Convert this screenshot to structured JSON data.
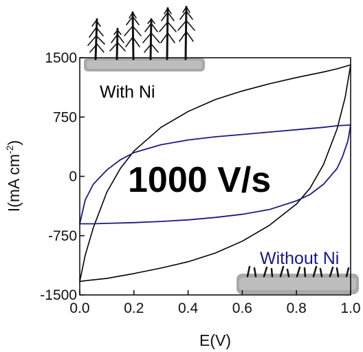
{
  "chart_data": {
    "type": "line",
    "xlabel": "E(V)",
    "ylabel": {
      "main": "I(mA cm",
      "superscript": "-2",
      "close": ")"
    },
    "xlim": [
      0.0,
      1.0
    ],
    "ylim": [
      -1500,
      1500
    ],
    "xticks": [
      "0.0",
      "0.2",
      "0.4",
      "0.6",
      "0.8",
      "1.0"
    ],
    "yticks": [
      "1500",
      "750",
      "0",
      "-750",
      "-1500"
    ],
    "annotations": {
      "scan_rate": "1000 V/s",
      "with_label": "With Ni",
      "without_label": "Without Ni"
    },
    "colors": {
      "with_ni": "#000000",
      "without_ni": "#1a1a80"
    },
    "series": [
      {
        "key": "with_ni",
        "anodic": {
          "x": [
            0.0,
            0.02,
            0.05,
            0.1,
            0.15,
            0.2,
            0.3,
            0.4,
            0.5,
            0.6,
            0.7,
            0.8,
            0.9,
            0.95,
            0.98,
            1.0
          ],
          "y": [
            -1330,
            -1000,
            -650,
            -200,
            100,
            320,
            620,
            820,
            970,
            1080,
            1170,
            1250,
            1320,
            1360,
            1390,
            1410
          ]
        },
        "cathodic": {
          "x": [
            1.0,
            0.98,
            0.95,
            0.9,
            0.85,
            0.8,
            0.7,
            0.6,
            0.5,
            0.4,
            0.3,
            0.2,
            0.1,
            0.05,
            0.02,
            0.0
          ],
          "y": [
            1410,
            1000,
            600,
            150,
            -150,
            -350,
            -620,
            -820,
            -970,
            -1080,
            -1160,
            -1230,
            -1290,
            -1310,
            -1320,
            -1330
          ]
        }
      },
      {
        "key": "without_ni",
        "anodic": {
          "x": [
            0.0,
            0.02,
            0.05,
            0.1,
            0.15,
            0.2,
            0.3,
            0.4,
            0.5,
            0.6,
            0.7,
            0.8,
            0.9,
            0.95,
            1.0
          ],
          "y": [
            -600,
            -300,
            -100,
            80,
            210,
            300,
            400,
            460,
            500,
            530,
            560,
            590,
            620,
            640,
            650
          ]
        },
        "cathodic": {
          "x": [
            1.0,
            0.99,
            0.97,
            0.95,
            0.9,
            0.85,
            0.8,
            0.7,
            0.6,
            0.5,
            0.4,
            0.3,
            0.2,
            0.1,
            0.05,
            0.0
          ],
          "y": [
            650,
            450,
            250,
            100,
            -100,
            -230,
            -310,
            -420,
            -480,
            -520,
            -550,
            -570,
            -585,
            -595,
            -600,
            -600
          ]
        }
      }
    ]
  }
}
